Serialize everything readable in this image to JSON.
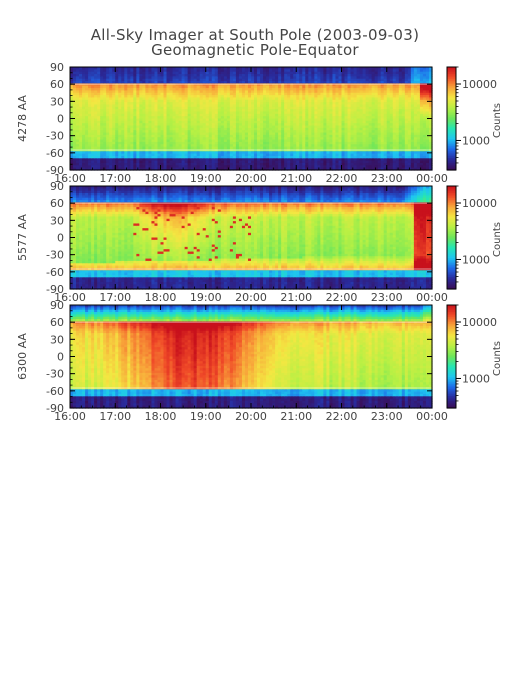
{
  "header": {
    "title": "All-Sky Imager at South Pole (2003-09-03)",
    "subtitle": "Geomagnetic Pole-Equator"
  },
  "colors": {
    "frame": "#000000",
    "text": "#444444",
    "colormap": [
      "#3a0d55",
      "#2a2a9a",
      "#1f68e8",
      "#1fc6f0",
      "#25e6b4",
      "#6ee65a",
      "#b8f044",
      "#f4e742",
      "#f8a53a",
      "#f04a28",
      "#c8101c"
    ]
  },
  "chart_data": [
    {
      "type": "heatmap",
      "panel_label": "4278 AA",
      "yticks": [
        90,
        60,
        30,
        0,
        -30,
        -60,
        -90
      ],
      "ylim": [
        -90,
        90
      ],
      "xticks": [
        "16:00",
        "17:00",
        "18:00",
        "19:00",
        "20:00",
        "21:00",
        "22:00",
        "23:00",
        "00:00"
      ],
      "xlim_hours": [
        16,
        24
      ],
      "colorbar": {
        "label": "Counts",
        "ticks": [
          "10000",
          "1000"
        ],
        "scale": "log",
        "range": [
          300,
          20000
        ]
      },
      "bands": {
        "upper_edge_deg": 60,
        "lower_edge_deg": -55
      }
    },
    {
      "type": "heatmap",
      "panel_label": "5577 AA",
      "yticks": [
        90,
        60,
        30,
        0,
        -30,
        -60,
        -90
      ],
      "ylim": [
        -90,
        90
      ],
      "xticks": [
        "16:00",
        "17:00",
        "18:00",
        "19:00",
        "20:00",
        "21:00",
        "22:00",
        "23:00",
        "00:00"
      ],
      "xlim_hours": [
        16,
        24
      ],
      "colorbar": {
        "label": "Counts",
        "ticks": [
          "10000",
          "1000"
        ],
        "scale": "log",
        "range": [
          300,
          20000
        ]
      },
      "bands": {
        "upper_edge_deg": 60,
        "lower_edge_deg": -55
      }
    },
    {
      "type": "heatmap",
      "panel_label": "6300 AA",
      "yticks": [
        90,
        60,
        30,
        0,
        -30,
        -60,
        -90
      ],
      "ylim": [
        -90,
        90
      ],
      "xticks": [
        "16:00",
        "17:00",
        "18:00",
        "19:00",
        "20:00",
        "21:00",
        "22:00",
        "23:00",
        "00:00"
      ],
      "xlim_hours": [
        16,
        24
      ],
      "colorbar": {
        "label": "Counts",
        "ticks": [
          "10000",
          "1000"
        ],
        "scale": "log",
        "range": [
          300,
          20000
        ]
      },
      "bands": {
        "upper_edge_deg": 60,
        "lower_edge_deg": -55
      }
    }
  ]
}
